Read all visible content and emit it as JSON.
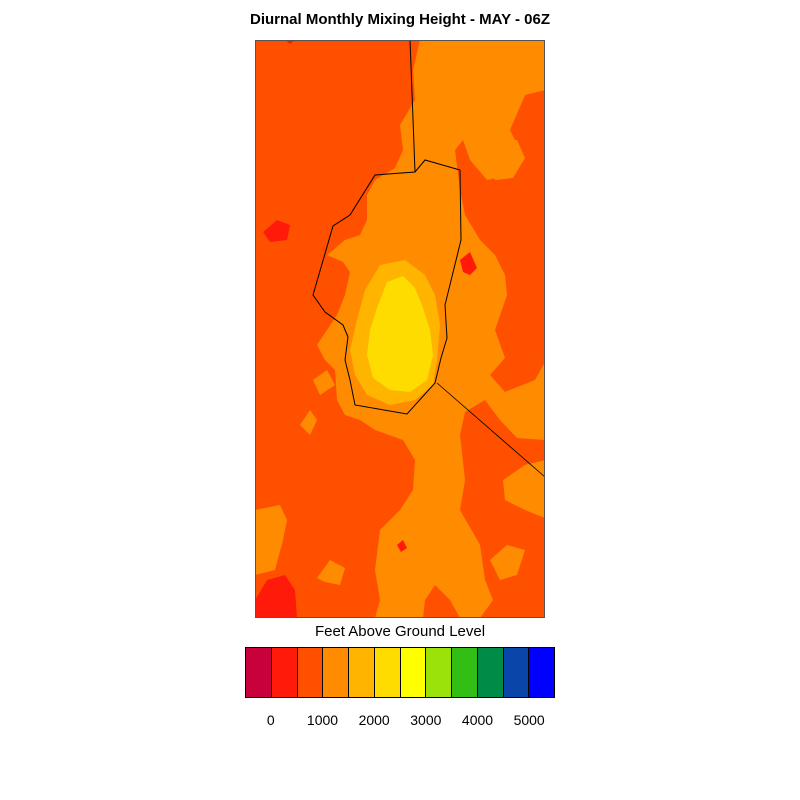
{
  "title": "Diurnal Monthly Mixing Height - MAY - 06Z",
  "legend": {
    "title": "Feet Above Ground Level",
    "colors": [
      "#c8003c",
      "#ff1a0a",
      "#ff5000",
      "#ff8c00",
      "#ffb400",
      "#ffdc00",
      "#ffff00",
      "#9be10a",
      "#32be14",
      "#008c46",
      "#0a46aa",
      "#0000ff"
    ],
    "tick_labels": [
      "0",
      "1000",
      "2000",
      "3000",
      "4000",
      "5000"
    ]
  },
  "map": {
    "dominant_fill": "#ff5000",
    "contour_colors": {
      "red": "#ff1a0a",
      "dark_orange": "#ff5000",
      "orange": "#ff8c00",
      "amber": "#ffb400",
      "gold": "#ffdc00"
    }
  }
}
